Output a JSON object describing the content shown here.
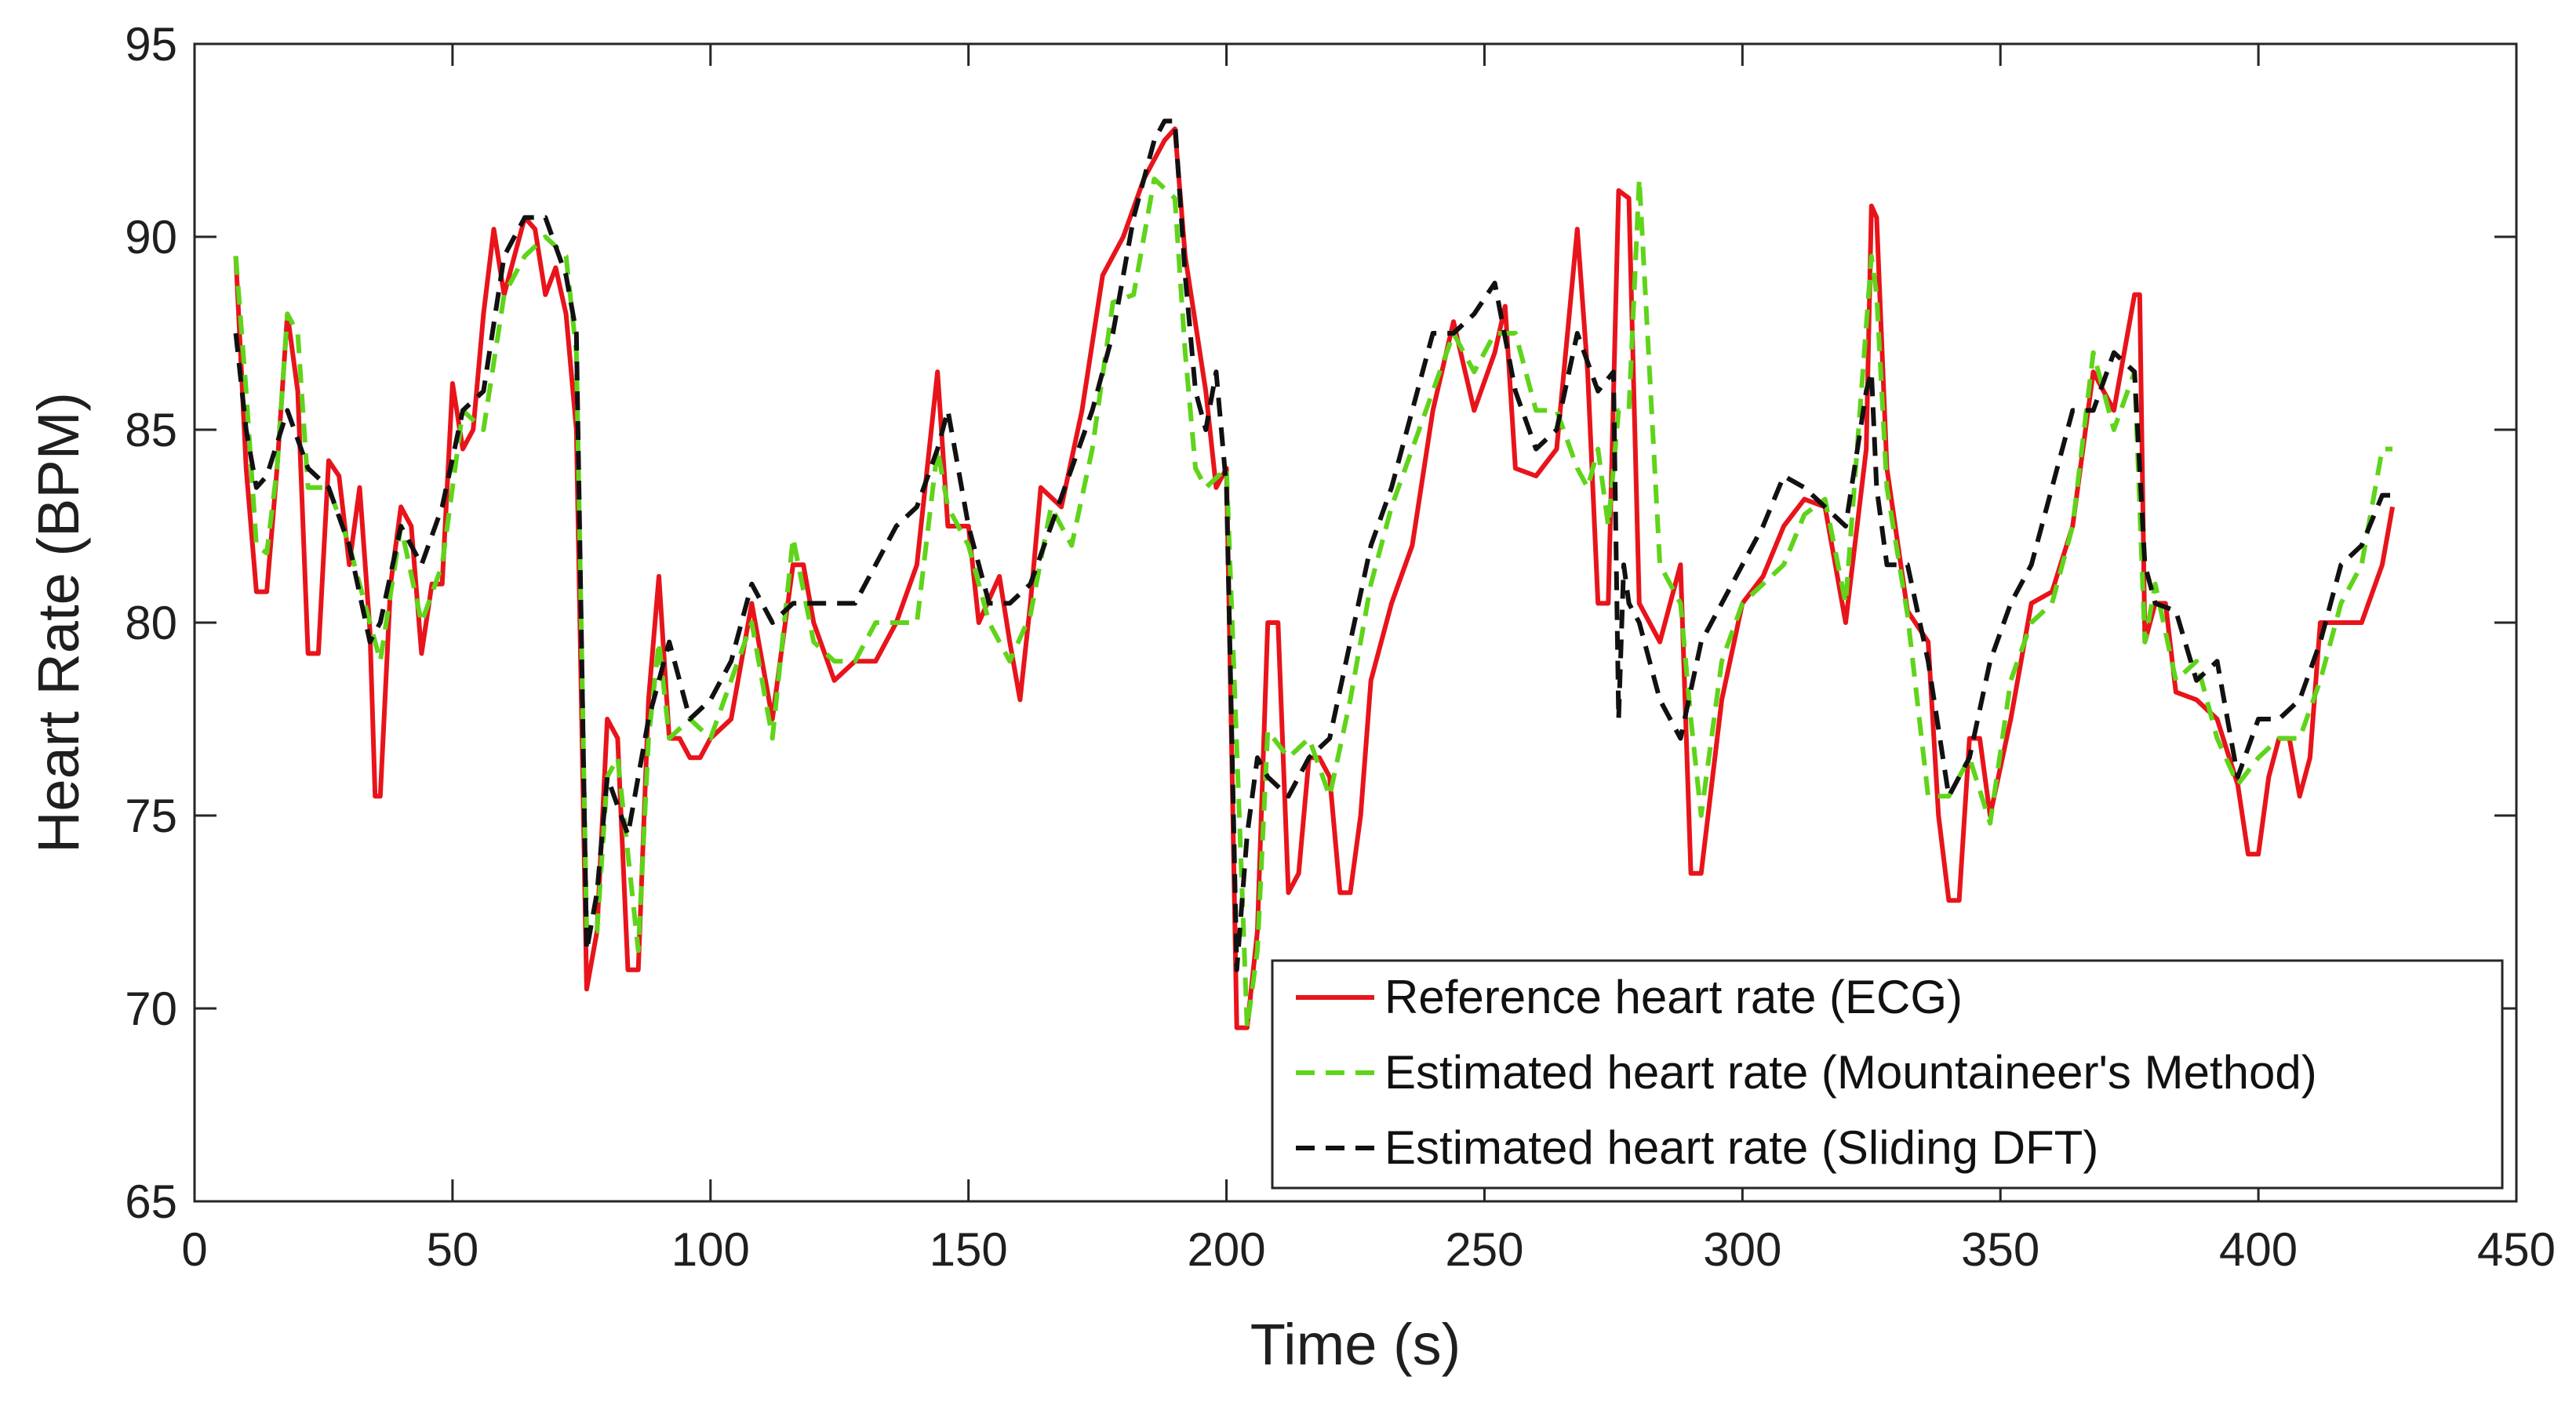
{
  "chart_data": {
    "type": "line",
    "title": "",
    "xlabel": "Time (s)",
    "ylabel": "Heart Rate (BPM)",
    "xlim": [
      0,
      450
    ],
    "ylim": [
      65,
      95
    ],
    "xticks": [
      0,
      50,
      100,
      150,
      200,
      250,
      300,
      350,
      400,
      450
    ],
    "yticks": [
      65,
      70,
      75,
      80,
      85,
      90,
      95
    ],
    "grid": false,
    "legend_position": "bottom-right",
    "series": [
      {
        "name": "Reference heart rate (ECG)",
        "color": "#e8141b",
        "style": "solid",
        "x": [
          8,
          10,
          12,
          14,
          16,
          18,
          20,
          22,
          24,
          26,
          28,
          30,
          32,
          34,
          35,
          36,
          38,
          40,
          42,
          44,
          46,
          48,
          50,
          52,
          54,
          56,
          58,
          60,
          62,
          64,
          66,
          68,
          70,
          72,
          74,
          76,
          78,
          80,
          82,
          84,
          86,
          88,
          90,
          92,
          94,
          96,
          98,
          100,
          104,
          108,
          112,
          116,
          118,
          120,
          124,
          128,
          132,
          136,
          140,
          144,
          146,
          148,
          150,
          152,
          156,
          158,
          160,
          162,
          164,
          168,
          172,
          176,
          180,
          184,
          188,
          190,
          192,
          196,
          198,
          200,
          202,
          204,
          206,
          208,
          210,
          212,
          214,
          216,
          218,
          220,
          222,
          224,
          226,
          228,
          232,
          236,
          240,
          244,
          248,
          252,
          254,
          256,
          260,
          264,
          268,
          270,
          272,
          274,
          276,
          278,
          280,
          284,
          288,
          290,
          292,
          296,
          300,
          304,
          308,
          312,
          316,
          320,
          324,
          325,
          326,
          328,
          332,
          336,
          338,
          340,
          342,
          344,
          346,
          348,
          352,
          356,
          360,
          364,
          368,
          372,
          376,
          377,
          378,
          380,
          382,
          384,
          388,
          392,
          396,
          398,
          400,
          402,
          404,
          406,
          408,
          410,
          412,
          416,
          420,
          424,
          426
        ],
        "values": [
          89.5,
          84,
          80.8,
          80.8,
          84,
          88,
          86,
          79.2,
          79.2,
          84.2,
          83.8,
          81.5,
          83.5,
          79.8,
          75.5,
          75.5,
          81,
          83,
          82.5,
          79.2,
          81,
          81,
          86.2,
          84.5,
          85,
          88,
          90.2,
          88.5,
          89.5,
          90.5,
          90.2,
          88.5,
          89.2,
          88,
          85,
          70.5,
          72,
          77.5,
          77,
          71,
          71,
          78,
          81.2,
          77,
          77,
          76.5,
          76.5,
          77,
          77.5,
          80.5,
          77.5,
          81.5,
          81.5,
          80,
          78.5,
          79,
          79,
          80,
          81.5,
          86.5,
          82.5,
          82.5,
          82.5,
          80,
          81.2,
          79.5,
          78,
          80.5,
          83.5,
          83,
          85.5,
          89,
          90,
          91.5,
          92.5,
          92.8,
          89.5,
          86,
          83.5,
          84,
          69.5,
          69.5,
          72,
          80,
          80,
          73,
          73.5,
          76.5,
          76.5,
          76,
          73,
          73,
          75,
          78.5,
          80.5,
          82,
          85.5,
          87.8,
          85.5,
          87,
          88.2,
          84,
          83.8,
          84.5,
          90.2,
          86.5,
          80.5,
          80.5,
          91.2,
          91,
          80.5,
          79.5,
          81.5,
          73.5,
          73.5,
          78,
          80.5,
          81.2,
          82.5,
          83.2,
          83,
          80,
          84.5,
          90.8,
          90.5,
          84,
          80.3,
          79.5,
          75,
          72.8,
          72.8,
          77,
          77,
          75,
          77.5,
          80.5,
          80.8,
          82.5,
          86.5,
          85.5,
          88.5,
          88.5,
          79.5,
          80.5,
          80.5,
          78.2,
          78,
          77.5,
          75.8,
          74,
          74,
          76,
          77,
          77,
          75.5,
          76.5,
          80,
          80,
          80,
          81.5,
          83
        ]
      },
      {
        "name": "Estimated heart rate (Mountaineer's Method)",
        "color": "#5fd41a",
        "style": "dashed",
        "x": [
          8,
          10,
          12,
          14,
          16,
          18,
          20,
          22,
          26,
          30,
          34,
          36,
          40,
          44,
          48,
          52,
          56,
          60,
          64,
          68,
          72,
          74,
          76,
          78,
          80,
          82,
          86,
          88,
          90,
          92,
          96,
          100,
          104,
          108,
          112,
          116,
          120,
          124,
          128,
          132,
          136,
          140,
          144,
          146,
          150,
          154,
          158,
          162,
          166,
          170,
          174,
          178,
          182,
          186,
          190,
          192,
          194,
          196,
          200,
          204,
          206,
          208,
          212,
          216,
          220,
          224,
          228,
          232,
          236,
          240,
          244,
          248,
          252,
          256,
          260,
          264,
          268,
          270,
          272,
          274,
          276,
          278,
          280,
          284,
          288,
          290,
          292,
          296,
          300,
          304,
          308,
          312,
          316,
          320,
          325,
          326,
          328,
          332,
          336,
          340,
          344,
          348,
          352,
          356,
          360,
          364,
          368,
          372,
          376,
          378,
          380,
          384,
          388,
          392,
          396,
          400,
          404,
          408,
          412,
          416,
          420,
          424,
          426
        ],
        "values": [
          89.5,
          86,
          82,
          81.8,
          84,
          88,
          87.5,
          83.5,
          83.5,
          82,
          80,
          79,
          82.5,
          80,
          81.5,
          85.5,
          85,
          88.5,
          89.5,
          90,
          89.5,
          87,
          72,
          72,
          76,
          76.5,
          71.5,
          77,
          79.5,
          77,
          77.5,
          77,
          78.5,
          80,
          77,
          82.2,
          79.5,
          79,
          79,
          80,
          80,
          80,
          84.5,
          83,
          82,
          80,
          79,
          80.2,
          83,
          82,
          84.5,
          88.3,
          88.5,
          91.5,
          91,
          87,
          84,
          83.5,
          84,
          69.5,
          71.5,
          77.2,
          76.5,
          77,
          75.5,
          78,
          81,
          83,
          84.5,
          86,
          87.5,
          86.5,
          87.5,
          87.5,
          85.5,
          85.5,
          84,
          83.5,
          84.5,
          82.5,
          85.5,
          85.5,
          91.5,
          81.5,
          80.5,
          77.5,
          75,
          79,
          80.5,
          81,
          81.5,
          82.8,
          83.2,
          80.5,
          89.5,
          88.5,
          83.5,
          80.2,
          75.5,
          75.5,
          76.5,
          74.8,
          78.5,
          80,
          80.5,
          82.5,
          87,
          85,
          86.5,
          79.5,
          81,
          78.5,
          79,
          77,
          75.8,
          76.5,
          77,
          77,
          78.5,
          80.5,
          81.5,
          84.5,
          84.5
        ]
      },
      {
        "name": "Estimated heart rate (Sliding DFT)",
        "color": "#111111",
        "style": "dashed",
        "x": [
          8,
          10,
          12,
          14,
          18,
          22,
          26,
          30,
          34,
          36,
          40,
          44,
          48,
          52,
          56,
          60,
          64,
          68,
          72,
          74,
          76,
          78,
          80,
          84,
          88,
          92,
          96,
          100,
          104,
          108,
          112,
          116,
          120,
          124,
          128,
          132,
          136,
          140,
          144,
          146,
          150,
          154,
          158,
          162,
          166,
          170,
          174,
          178,
          182,
          186,
          188,
          190,
          192,
          194,
          196,
          198,
          200,
          202,
          204,
          206,
          208,
          212,
          216,
          220,
          224,
          228,
          232,
          236,
          240,
          244,
          248,
          252,
          256,
          260,
          264,
          268,
          272,
          275,
          276,
          277,
          278,
          280,
          284,
          288,
          292,
          296,
          300,
          304,
          308,
          312,
          316,
          320,
          324,
          325,
          326,
          328,
          332,
          336,
          340,
          344,
          348,
          352,
          356,
          360,
          364,
          368,
          372,
          376,
          378,
          380,
          384,
          388,
          392,
          396,
          400,
          404,
          408,
          412,
          416,
          420,
          424,
          426
        ],
        "values": [
          87.5,
          85,
          83.5,
          83.8,
          85.5,
          84,
          83.5,
          82,
          79.5,
          80,
          82.5,
          81.5,
          83,
          85.5,
          86,
          89.5,
          90.5,
          90.5,
          89,
          87.5,
          71.5,
          73,
          76,
          74.5,
          77.5,
          79.5,
          77.5,
          78,
          79,
          81,
          80,
          80.5,
          80.5,
          80.5,
          80.5,
          81.5,
          82.5,
          83,
          84.5,
          85.5,
          82.5,
          80.5,
          80.5,
          81,
          82.5,
          84,
          85.5,
          87.5,
          90.5,
          92.5,
          93,
          93,
          89,
          86,
          85,
          86.5,
          83.5,
          71,
          74.5,
          76.5,
          76,
          75.5,
          76.5,
          77,
          79.5,
          82,
          83.5,
          85.5,
          87.5,
          87.5,
          88,
          88.8,
          86,
          84.5,
          85,
          87.5,
          86,
          86.5,
          77.5,
          81.5,
          80.5,
          80,
          78,
          77,
          79.5,
          80.5,
          81.5,
          82.5,
          83.8,
          83.5,
          83,
          82.5,
          86,
          86.5,
          83.5,
          81.5,
          81.5,
          79,
          75.5,
          76.5,
          79,
          80.5,
          81.5,
          83.5,
          85.5,
          85.5,
          87,
          86.5,
          81.5,
          80.5,
          80.3,
          78.5,
          79,
          76,
          77.5,
          77.5,
          78,
          79.5,
          81.5,
          82,
          83.3,
          83.3
        ]
      }
    ]
  }
}
